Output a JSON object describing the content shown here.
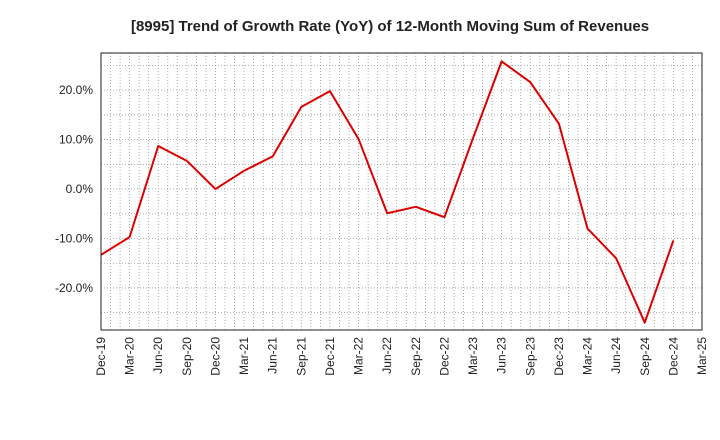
{
  "chart_data": {
    "type": "line",
    "title": "[8995]  Trend of Growth Rate (YoY) of 12-Month Moving Sum of Revenues",
    "xlabel": "",
    "ylabel": "",
    "x_ticks": [
      "Dec-19",
      "Mar-20",
      "Jun-20",
      "Sep-20",
      "Dec-20",
      "Mar-21",
      "Jun-21",
      "Sep-21",
      "Dec-21",
      "Mar-22",
      "Jun-22",
      "Sep-22",
      "Dec-22",
      "Mar-23",
      "Jun-23",
      "Sep-23",
      "Dec-23",
      "Mar-24",
      "Jun-24",
      "Sep-24",
      "Dec-24",
      "Mar-25"
    ],
    "y_ticks": [
      {
        "value": 20,
        "label": "20.0%"
      },
      {
        "value": 10,
        "label": "10.0%"
      },
      {
        "value": 0,
        "label": "0.0%"
      },
      {
        "value": -10,
        "label": "-10.0%"
      },
      {
        "value": -20,
        "label": "-20.0%"
      }
    ],
    "ylim": [
      -28.5,
      27.5
    ],
    "grid": true,
    "series": [
      {
        "color": "#dd0000",
        "x": [
          "Dec-19",
          "Mar-20",
          "Jun-20",
          "Sep-20",
          "Dec-20",
          "Mar-21",
          "Jun-21",
          "Sep-21",
          "Dec-21",
          "Mar-22",
          "Jun-22",
          "Sep-22",
          "Dec-22",
          "Mar-23",
          "Jun-23",
          "Sep-23",
          "Dec-23",
          "Mar-24",
          "Jun-24",
          "Sep-24",
          "Dec-24"
        ],
        "values": [
          -13.3,
          -9.7,
          8.7,
          5.7,
          0.0,
          3.7,
          6.6,
          16.6,
          19.8,
          10.1,
          -4.9,
          -3.6,
          -5.7,
          10.3,
          25.8,
          21.6,
          13.2,
          -8.0,
          -14.0,
          -27.0,
          -10.4
        ]
      }
    ]
  }
}
